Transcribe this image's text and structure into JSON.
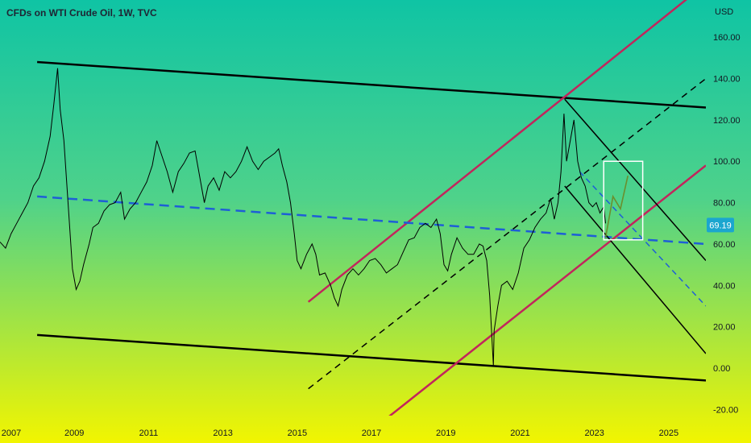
{
  "chart_data": {
    "type": "line",
    "title": "CFDs on WTI Crude Oil, 1W, TVC",
    "currency": "USD",
    "x_ticks": [
      "2007",
      "2009",
      "2011",
      "2013",
      "2015",
      "2017",
      "2019",
      "2021",
      "2023",
      "2025"
    ],
    "y_ticks": [
      "160.00",
      "140.00",
      "120.00",
      "100.00",
      "80.00",
      "60.00",
      "40.00",
      "20.00",
      "0.00",
      "-20.00"
    ],
    "xlim": [
      2007.0,
      2026.0
    ],
    "ylim": [
      -23,
      178
    ],
    "last_price": "69.19",
    "grid": false,
    "background": {
      "top": "#0fc4a4",
      "middle": "#4fd28a",
      "bottom": "#f2f500"
    },
    "colors": {
      "price": "#000000",
      "channel": "#000000",
      "magenta": "#c2255c",
      "dashed_blue": "#1e5fd6",
      "dashed_black": "#000000",
      "price_tag": "#1ba6cf",
      "projection": "#6a8f2e",
      "box": "#ffffff"
    },
    "series": [
      {
        "points": [
          [
            2007.0,
            61
          ],
          [
            2007.15,
            58
          ],
          [
            2007.3,
            65
          ],
          [
            2007.45,
            70
          ],
          [
            2007.6,
            75
          ],
          [
            2007.75,
            80
          ],
          [
            2007.9,
            88
          ],
          [
            2008.05,
            92
          ],
          [
            2008.2,
            100
          ],
          [
            2008.35,
            112
          ],
          [
            2008.45,
            128
          ],
          [
            2008.55,
            145
          ],
          [
            2008.62,
            125
          ],
          [
            2008.72,
            110
          ],
          [
            2008.85,
            75
          ],
          [
            2008.95,
            48
          ],
          [
            2009.05,
            38
          ],
          [
            2009.15,
            42
          ],
          [
            2009.25,
            50
          ],
          [
            2009.4,
            60
          ],
          [
            2009.5,
            68
          ],
          [
            2009.65,
            70
          ],
          [
            2009.8,
            76
          ],
          [
            2009.95,
            79
          ],
          [
            2010.1,
            80
          ],
          [
            2010.25,
            85
          ],
          [
            2010.35,
            72
          ],
          [
            2010.5,
            77
          ],
          [
            2010.65,
            80
          ],
          [
            2010.8,
            85
          ],
          [
            2010.95,
            90
          ],
          [
            2011.1,
            98
          ],
          [
            2011.22,
            110
          ],
          [
            2011.35,
            103
          ],
          [
            2011.5,
            95
          ],
          [
            2011.65,
            85
          ],
          [
            2011.8,
            95
          ],
          [
            2011.95,
            99
          ],
          [
            2012.1,
            104
          ],
          [
            2012.25,
            105
          ],
          [
            2012.4,
            90
          ],
          [
            2012.5,
            80
          ],
          [
            2012.6,
            88
          ],
          [
            2012.75,
            92
          ],
          [
            2012.9,
            86
          ],
          [
            2013.05,
            95
          ],
          [
            2013.2,
            92
          ],
          [
            2013.35,
            95
          ],
          [
            2013.5,
            100
          ],
          [
            2013.65,
            107
          ],
          [
            2013.8,
            100
          ],
          [
            2013.95,
            96
          ],
          [
            2014.1,
            100
          ],
          [
            2014.25,
            102
          ],
          [
            2014.4,
            104
          ],
          [
            2014.5,
            106
          ],
          [
            2014.6,
            98
          ],
          [
            2014.72,
            90
          ],
          [
            2014.82,
            80
          ],
          [
            2014.92,
            65
          ],
          [
            2015.0,
            52
          ],
          [
            2015.1,
            48
          ],
          [
            2015.25,
            55
          ],
          [
            2015.4,
            60
          ],
          [
            2015.5,
            55
          ],
          [
            2015.6,
            45
          ],
          [
            2015.75,
            46
          ],
          [
            2015.9,
            40
          ],
          [
            2016.0,
            34
          ],
          [
            2016.1,
            30
          ],
          [
            2016.2,
            38
          ],
          [
            2016.35,
            45
          ],
          [
            2016.5,
            48
          ],
          [
            2016.65,
            45
          ],
          [
            2016.8,
            48
          ],
          [
            2016.95,
            52
          ],
          [
            2017.1,
            53
          ],
          [
            2017.25,
            50
          ],
          [
            2017.4,
            46
          ],
          [
            2017.55,
            48
          ],
          [
            2017.7,
            50
          ],
          [
            2017.85,
            56
          ],
          [
            2018.0,
            62
          ],
          [
            2018.15,
            63
          ],
          [
            2018.3,
            68
          ],
          [
            2018.45,
            70
          ],
          [
            2018.6,
            68
          ],
          [
            2018.75,
            72
          ],
          [
            2018.85,
            65
          ],
          [
            2018.95,
            50
          ],
          [
            2019.05,
            47
          ],
          [
            2019.15,
            55
          ],
          [
            2019.3,
            63
          ],
          [
            2019.45,
            58
          ],
          [
            2019.6,
            55
          ],
          [
            2019.75,
            55
          ],
          [
            2019.9,
            60
          ],
          [
            2020.0,
            59
          ],
          [
            2020.1,
            52
          ],
          [
            2020.18,
            35
          ],
          [
            2020.28,
            1
          ],
          [
            2020.3,
            18
          ],
          [
            2020.4,
            30
          ],
          [
            2020.5,
            40
          ],
          [
            2020.65,
            42
          ],
          [
            2020.8,
            38
          ],
          [
            2020.95,
            46
          ],
          [
            2021.1,
            58
          ],
          [
            2021.25,
            62
          ],
          [
            2021.4,
            68
          ],
          [
            2021.55,
            72
          ],
          [
            2021.7,
            75
          ],
          [
            2021.82,
            82
          ],
          [
            2021.92,
            72
          ],
          [
            2022.02,
            80
          ],
          [
            2022.1,
            95
          ],
          [
            2022.18,
            123
          ],
          [
            2022.25,
            100
          ],
          [
            2022.35,
            110
          ],
          [
            2022.45,
            120
          ],
          [
            2022.55,
            100
          ],
          [
            2022.65,
            92
          ],
          [
            2022.75,
            88
          ],
          [
            2022.85,
            80
          ],
          [
            2022.95,
            78
          ],
          [
            2023.05,
            80
          ],
          [
            2023.15,
            75
          ],
          [
            2023.25,
            78
          ],
          [
            2023.3,
            70
          ]
        ]
      }
    ],
    "lines": [
      {
        "style": "channel-top",
        "points": [
          [
            2008.0,
            148
          ],
          [
            2026.0,
            126
          ]
        ]
      },
      {
        "style": "channel-bottom",
        "points": [
          [
            2008.0,
            16
          ],
          [
            2026.0,
            -6
          ]
        ]
      },
      {
        "style": "magenta-upper",
        "points": [
          [
            2015.3,
            32
          ],
          [
            2026.5,
            193
          ]
        ]
      },
      {
        "style": "magenta-lower",
        "points": [
          [
            2016.8,
            -33
          ],
          [
            2026.0,
            98
          ]
        ]
      },
      {
        "style": "blue-dashed",
        "points": [
          [
            2008.0,
            83
          ],
          [
            2026.0,
            60
          ]
        ]
      },
      {
        "style": "black-dashed",
        "points": [
          [
            2015.3,
            -10
          ],
          [
            2026.0,
            140
          ]
        ]
      },
      {
        "style": "descending-upper",
        "points": [
          [
            2022.2,
            130
          ],
          [
            2026.0,
            52
          ]
        ]
      },
      {
        "style": "descending-lower",
        "points": [
          [
            2022.2,
            88
          ],
          [
            2026.0,
            7
          ]
        ]
      },
      {
        "style": "blue-dashed-descending",
        "points": [
          [
            2022.6,
            95
          ],
          [
            2026.0,
            30
          ]
        ]
      }
    ],
    "projection": {
      "points": [
        [
          2023.3,
          63
        ],
        [
          2023.5,
          83
        ],
        [
          2023.7,
          77
        ],
        [
          2023.9,
          93
        ]
      ]
    },
    "box": {
      "x": [
        2023.25,
        2024.3
      ],
      "y": [
        62,
        100
      ]
    }
  }
}
